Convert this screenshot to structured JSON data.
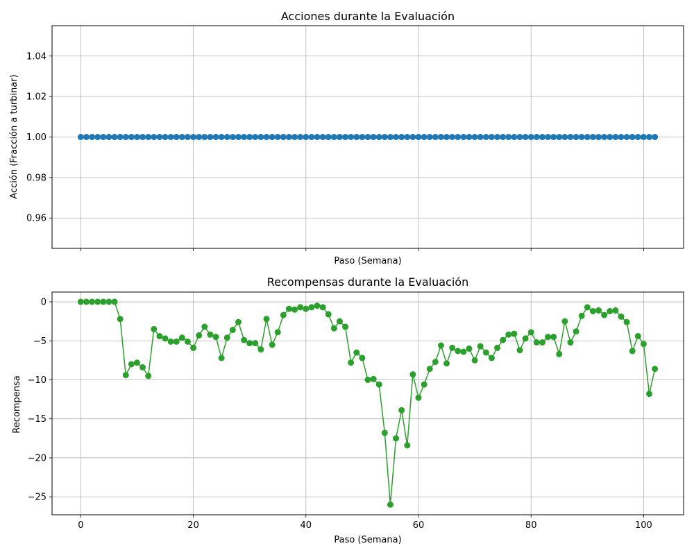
{
  "colors": {
    "actions": "#1f77b4",
    "rewards": "#2ca02c",
    "grid": "#b0b0b0"
  },
  "chart_data": [
    {
      "type": "line",
      "title": "Acciones durante la Evaluación",
      "xlabel": "Paso (Semana)",
      "ylabel": "Acción (Fracción a turbinar)",
      "grid": true,
      "markers": true,
      "xlim": [
        -5.1,
        107.1
      ],
      "ylim": [
        0.945,
        1.055
      ],
      "xticks": [
        0,
        20,
        40,
        60,
        80,
        100
      ],
      "xticklabels_visible": false,
      "yticks": [
        0.96,
        0.98,
        1.0,
        1.02,
        1.04
      ],
      "yticklabels": [
        "0.96",
        "0.98",
        "1.00",
        "1.02",
        "1.04"
      ],
      "series": [
        {
          "color": "#1f77b4",
          "x_start": 0,
          "values": [
            1.0,
            1.0,
            1.0,
            1.0,
            1.0,
            1.0,
            1.0,
            1.0,
            1.0,
            1.0,
            1.0,
            1.0,
            1.0,
            1.0,
            1.0,
            1.0,
            1.0,
            1.0,
            1.0,
            1.0,
            1.0,
            1.0,
            1.0,
            1.0,
            1.0,
            1.0,
            1.0,
            1.0,
            1.0,
            1.0,
            1.0,
            1.0,
            1.0,
            1.0,
            1.0,
            1.0,
            1.0,
            1.0,
            1.0,
            1.0,
            1.0,
            1.0,
            1.0,
            1.0,
            1.0,
            1.0,
            1.0,
            1.0,
            1.0,
            1.0,
            1.0,
            1.0,
            1.0,
            1.0,
            1.0,
            1.0,
            1.0,
            1.0,
            1.0,
            1.0,
            1.0,
            1.0,
            1.0,
            1.0,
            1.0,
            1.0,
            1.0,
            1.0,
            1.0,
            1.0,
            1.0,
            1.0,
            1.0,
            1.0,
            1.0,
            1.0,
            1.0,
            1.0,
            1.0,
            1.0,
            1.0,
            1.0,
            1.0,
            1.0,
            1.0,
            1.0,
            1.0,
            1.0,
            1.0,
            1.0,
            1.0,
            1.0,
            1.0,
            1.0,
            1.0,
            1.0,
            1.0,
            1.0,
            1.0,
            1.0,
            1.0,
            1.0,
            1.0
          ]
        }
      ]
    },
    {
      "type": "line",
      "title": "Recompensas durante la Evaluación",
      "xlabel": "Paso (Semana)",
      "ylabel": "Recompensa",
      "grid": true,
      "markers": true,
      "xlim": [
        -5.1,
        107.1
      ],
      "ylim": [
        -27.3,
        1.25
      ],
      "xticks": [
        0,
        20,
        40,
        60,
        80,
        100
      ],
      "xticklabels": [
        "0",
        "20",
        "40",
        "60",
        "80",
        "100"
      ],
      "yticks": [
        -25,
        -20,
        -15,
        -10,
        -5,
        0
      ],
      "yticklabels": [
        "−25",
        "−20",
        "−15",
        "−10",
        "−5",
        "0"
      ],
      "series": [
        {
          "color": "#2ca02c",
          "x_start": 0,
          "values": [
            0.0,
            0.0,
            0.0,
            0.0,
            0.0,
            0.0,
            0.0,
            -2.2,
            -9.4,
            -8.0,
            -7.8,
            -8.4,
            -9.5,
            -3.5,
            -4.4,
            -4.7,
            -5.1,
            -5.1,
            -4.6,
            -5.1,
            -5.9,
            -4.3,
            -3.2,
            -4.2,
            -4.5,
            -7.2,
            -4.6,
            -3.6,
            -2.6,
            -4.9,
            -5.3,
            -5.3,
            -6.1,
            -2.2,
            -5.5,
            -3.9,
            -1.7,
            -0.9,
            -1.0,
            -0.7,
            -0.9,
            -0.7,
            -0.5,
            -0.7,
            -1.6,
            -3.4,
            -2.5,
            -3.2,
            -7.8,
            -6.5,
            -7.2,
            -10.0,
            -9.9,
            -10.6,
            -16.8,
            -26.0,
            -17.5,
            -13.9,
            -18.4,
            -9.3,
            -12.3,
            -10.6,
            -8.6,
            -7.7,
            -5.6,
            -7.9,
            -5.9,
            -6.3,
            -6.4,
            -6.0,
            -7.5,
            -5.7,
            -6.5,
            -7.2,
            -5.9,
            -4.9,
            -4.2,
            -4.1,
            -6.2,
            -4.7,
            -3.9,
            -5.2,
            -5.2,
            -4.5,
            -4.5,
            -6.7,
            -2.5,
            -5.2,
            -3.8,
            -1.8,
            -0.7,
            -1.2,
            -1.1,
            -1.7,
            -1.2,
            -1.1,
            -1.9,
            -2.6,
            -6.3,
            -4.4,
            -5.4,
            -11.8,
            -8.6
          ]
        }
      ]
    }
  ]
}
